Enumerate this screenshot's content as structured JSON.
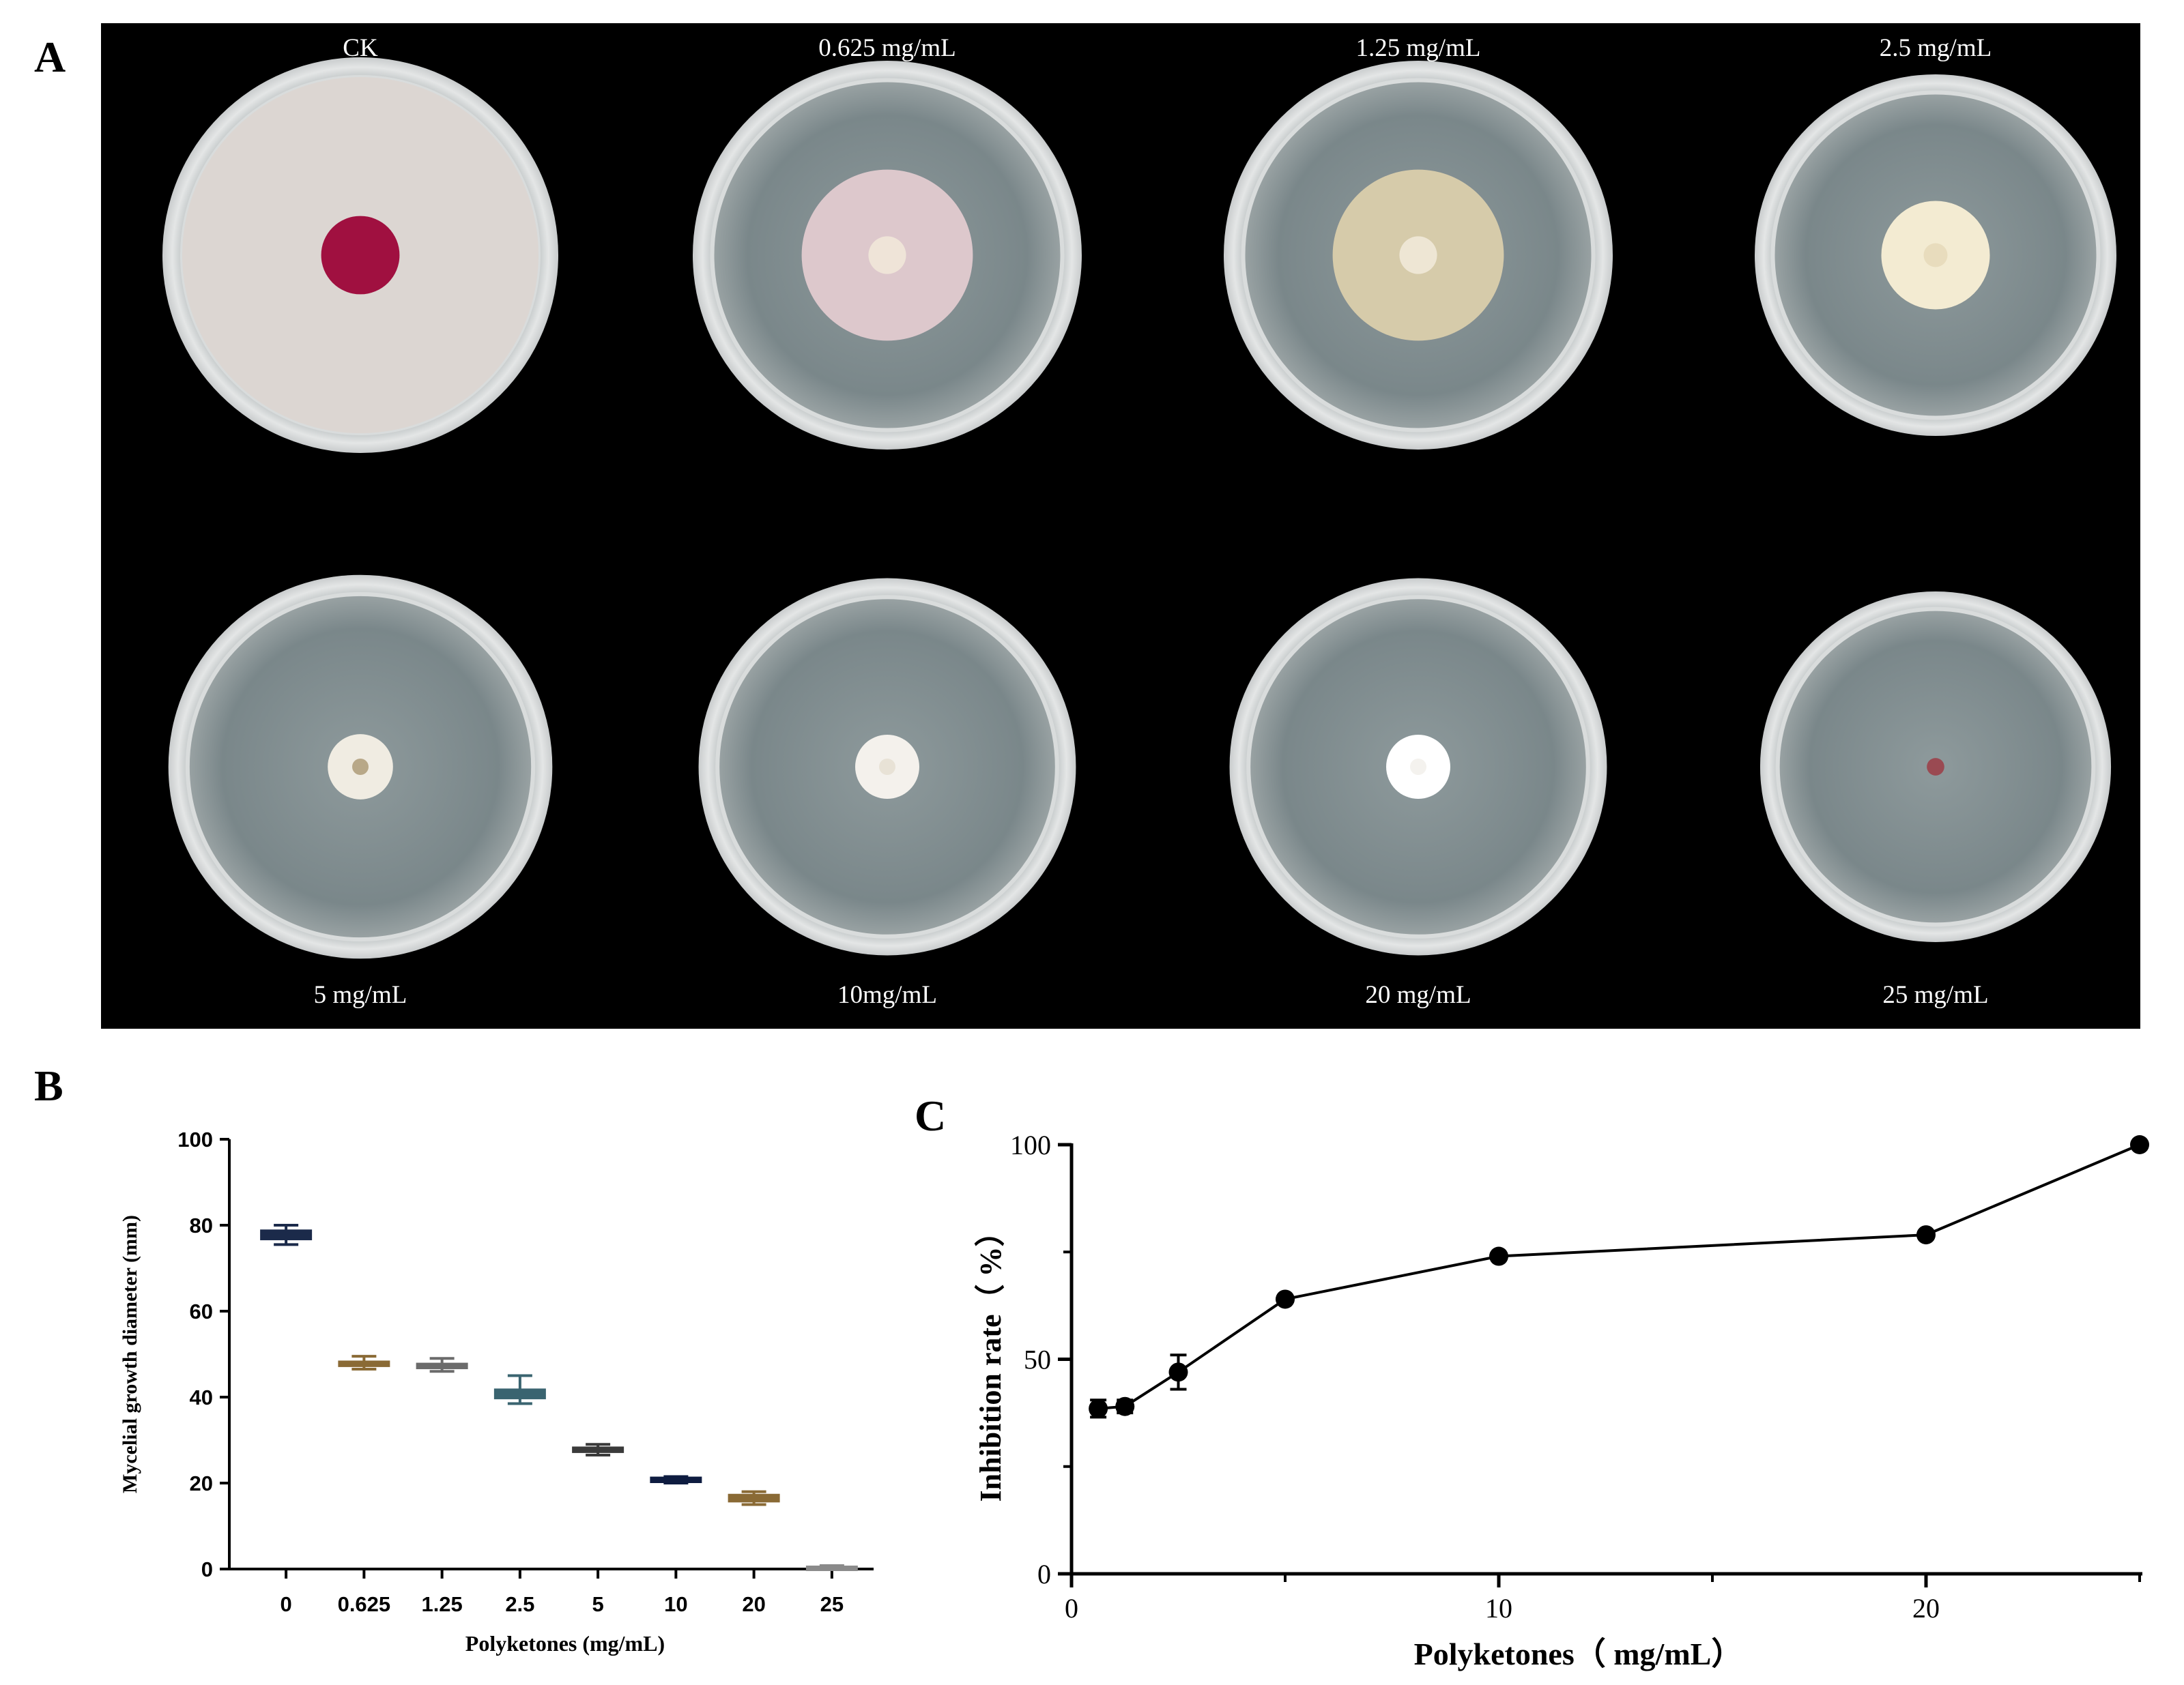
{
  "figure": {
    "panel_labels": {
      "a": "A",
      "b": "B",
      "c": "C"
    },
    "panel_a": {
      "top_row": [
        {
          "label": "CK",
          "colony": "full",
          "colony_color": "#dcd6d2",
          "center_color": "#a01040"
        },
        {
          "label": "0.625 mg/mL",
          "colony": "large",
          "colony_color": "#ddc8cc",
          "center_color": "#efe4d8"
        },
        {
          "label": "1.25 mg/mL",
          "colony": "large",
          "colony_color": "#d6cbaa",
          "center_color": "#eee6d4"
        },
        {
          "label": "2.5 mg/mL",
          "colony": "medium",
          "colony_color": "#f3ebd2",
          "center_color": "#e8dcbd"
        }
      ],
      "bottom_row": [
        {
          "label": "5 mg/mL",
          "colony": "small",
          "colony_color": "#f0ece2",
          "center_color": "#b8a888"
        },
        {
          "label": "10mg/mL",
          "colony": "small",
          "colony_color": "#f4f1ec",
          "center_color": "#e8e2d6"
        },
        {
          "label": "20 mg/mL",
          "colony": "small",
          "colony_color": "#ffffff",
          "center_color": "#f4f2ee"
        },
        {
          "label": "25 mg/mL",
          "colony": "plug",
          "colony_color": "#9a4a52",
          "center_color": "#8a3a44"
        }
      ]
    }
  },
  "chart_data": [
    {
      "type": "box",
      "panel": "B",
      "title": "",
      "xlabel": "Polyketones (mg/mL)",
      "ylabel": "Mycelial growth diameter (mm)",
      "ylim": [
        0,
        100
      ],
      "yticks": [
        "0",
        "20",
        "40",
        "60",
        "80",
        "100"
      ],
      "categories": [
        "0",
        "0.625",
        "1.25",
        "2.5",
        "5",
        "10",
        "20",
        "25"
      ],
      "values": [
        {
          "min": 75.5,
          "q1": 76.5,
          "median": 77.5,
          "q3": 79,
          "max": 80,
          "color": "#1b2a4a"
        },
        {
          "min": 46.5,
          "q1": 47,
          "median": 47.5,
          "q3": 48.5,
          "max": 49.5,
          "color": "#8a6a35"
        },
        {
          "min": 46,
          "q1": 46.5,
          "median": 47,
          "q3": 48,
          "max": 49,
          "color": "#6b6b6b"
        },
        {
          "min": 38.5,
          "q1": 39.5,
          "median": 40.5,
          "q3": 42,
          "max": 45,
          "color": "#3a6470"
        },
        {
          "min": 26.5,
          "q1": 27,
          "median": 27.5,
          "q3": 28.5,
          "max": 29,
          "color": "#3a3a3a"
        },
        {
          "min": 20,
          "q1": 20,
          "median": 20.5,
          "q3": 21.5,
          "max": 21.5,
          "color": "#0e1c40"
        },
        {
          "min": 15,
          "q1": 15.5,
          "median": 16.5,
          "q3": 17.5,
          "max": 18,
          "color": "#8a6a35"
        },
        {
          "min": 0,
          "q1": 0,
          "median": 0.3,
          "q3": 0.8,
          "max": 0.8,
          "color": "#8a8a8a"
        }
      ]
    },
    {
      "type": "line",
      "panel": "C",
      "title": "",
      "xlabel": "Polyketones（ mg/mL）",
      "ylabel": "Inhibition rate（ %）",
      "xlim": [
        0,
        25
      ],
      "ylim": [
        0,
        100
      ],
      "xticks": [
        "0",
        "10",
        "20"
      ],
      "yticks": [
        "0",
        "50",
        "100"
      ],
      "series": [
        {
          "x": [
            0.625,
            1.25,
            2.5,
            5,
            10,
            20,
            25
          ],
          "y": [
            38.5,
            39,
            47,
            64,
            74,
            79,
            100
          ],
          "err": [
            2,
            1.5,
            4,
            0.5,
            0.5,
            0.5,
            0
          ]
        }
      ]
    }
  ]
}
